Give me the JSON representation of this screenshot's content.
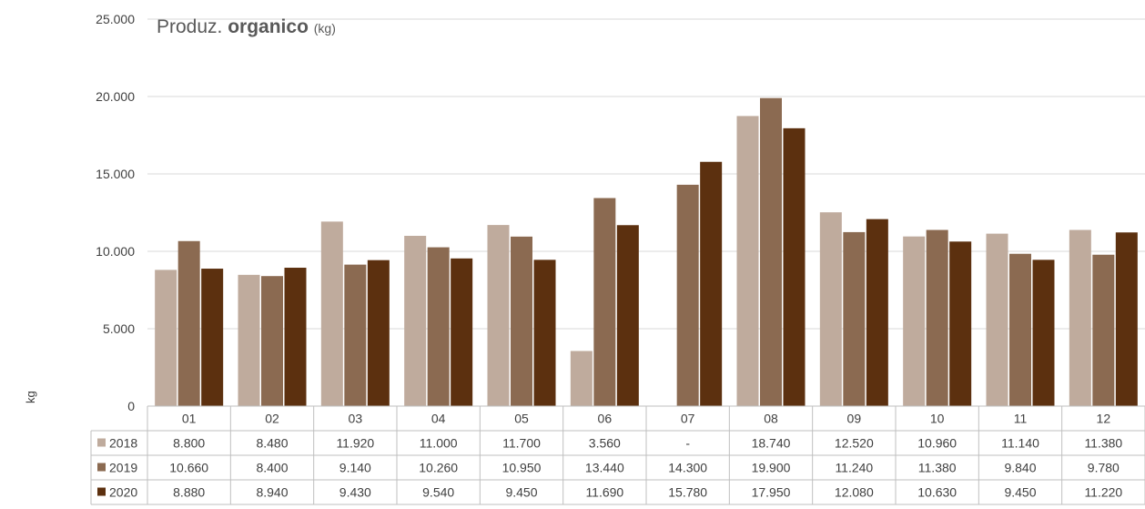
{
  "chart_data": {
    "type": "bar",
    "title": {
      "prefix": "Produz.",
      "bold": "organico",
      "unit": "(kg)"
    },
    "ylabel": "kg",
    "ylim": [
      0,
      25000
    ],
    "yticks": [
      "0",
      "5.000",
      "10.000",
      "15.000",
      "20.000",
      "25.000"
    ],
    "ytick_values": [
      0,
      5000,
      10000,
      15000,
      20000,
      25000
    ],
    "grid": true,
    "legend": "data-table",
    "categories": [
      "01",
      "02",
      "03",
      "04",
      "05",
      "06",
      "07",
      "08",
      "09",
      "10",
      "11",
      "12"
    ],
    "series": [
      {
        "name": "2018",
        "color": "#bfab9d",
        "values": [
          8800,
          8480,
          11920,
          11000,
          11700,
          3560,
          null,
          18740,
          12520,
          10960,
          11140,
          11380
        ],
        "labels": [
          "8.800",
          "8.480",
          "11.920",
          "11.000",
          "11.700",
          "3.560",
          "-",
          "18.740",
          "12.520",
          "10.960",
          "11.140",
          "11.380"
        ]
      },
      {
        "name": "2019",
        "color": "#8b6a51",
        "values": [
          10660,
          8400,
          9140,
          10260,
          10950,
          13440,
          14300,
          19900,
          11240,
          11380,
          9840,
          9780
        ],
        "labels": [
          "10.660",
          "8.400",
          "9.140",
          "10.260",
          "10.950",
          "13.440",
          "14.300",
          "19.900",
          "11.240",
          "11.380",
          "9.840",
          "9.780"
        ]
      },
      {
        "name": "2020",
        "color": "#5c300f",
        "values": [
          8880,
          8940,
          9430,
          9540,
          9450,
          11690,
          15780,
          17950,
          12080,
          10630,
          9450,
          11220
        ],
        "labels": [
          "8.880",
          "8.940",
          "9.430",
          "9.540",
          "9.450",
          "11.690",
          "15.780",
          "17.950",
          "12.080",
          "10.630",
          "9.450",
          "11.220"
        ]
      }
    ]
  }
}
